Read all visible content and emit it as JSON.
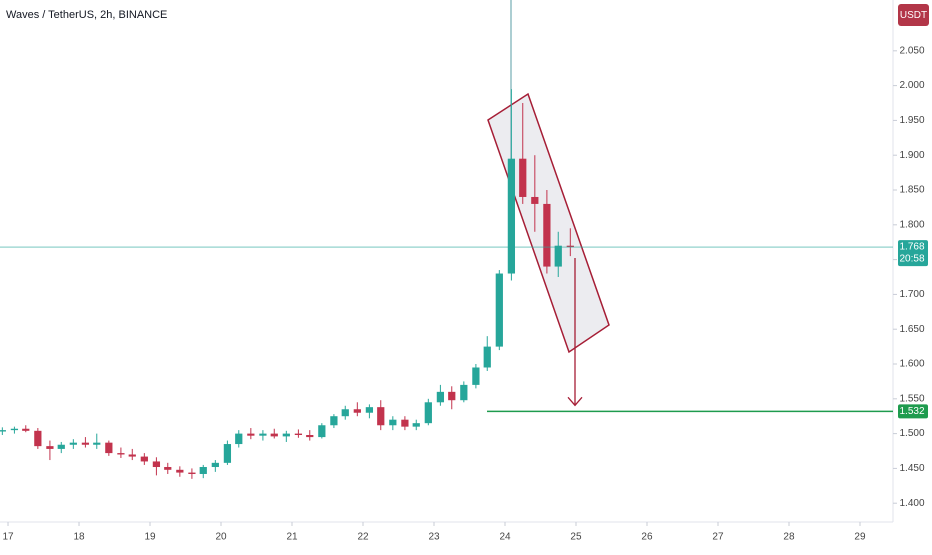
{
  "chart_data": {
    "type": "candlestick",
    "title": "Waves / TetherUS, 2h, BINANCE",
    "currency": "USDT",
    "up_color": "#26a69a",
    "down_color": "#c2334d",
    "x": [
      16.92,
      17.09,
      17.25,
      17.42,
      17.59,
      17.75,
      17.92,
      18.09,
      18.25,
      18.42,
      18.59,
      18.75,
      18.92,
      19.09,
      19.25,
      19.42,
      19.59,
      19.75,
      19.92,
      20.09,
      20.25,
      20.42,
      20.59,
      20.75,
      20.92,
      21.09,
      21.25,
      21.42,
      21.59,
      21.75,
      21.92,
      22.09,
      22.25,
      22.42,
      22.59,
      22.75,
      22.92,
      23.09,
      23.25,
      23.42,
      23.59,
      23.75,
      23.92,
      24.09,
      24.25,
      24.42,
      24.59,
      24.75,
      24.92
    ],
    "open": [
      1.503,
      1.505,
      1.507,
      1.504,
      1.482,
      1.478,
      1.484,
      1.487,
      1.484,
      1.487,
      1.472,
      1.47,
      1.467,
      1.46,
      1.452,
      1.448,
      1.444,
      1.442,
      1.452,
      1.458,
      1.485,
      1.5,
      1.497,
      1.5,
      1.496,
      1.5,
      1.498,
      1.495,
      1.512,
      1.525,
      1.535,
      1.53,
      1.538,
      1.512,
      1.52,
      1.51,
      1.515,
      1.545,
      1.56,
      1.548,
      1.57,
      1.595,
      1.625,
      1.73,
      1.895,
      1.84,
      1.83,
      1.74,
      1.77
    ],
    "high": [
      1.509,
      1.51,
      1.512,
      1.508,
      1.49,
      1.488,
      1.492,
      1.495,
      1.5,
      1.49,
      1.48,
      1.478,
      1.472,
      1.466,
      1.458,
      1.453,
      1.45,
      1.455,
      1.462,
      1.49,
      1.505,
      1.508,
      1.505,
      1.507,
      1.504,
      1.506,
      1.505,
      1.515,
      1.528,
      1.54,
      1.545,
      1.542,
      1.548,
      1.525,
      1.525,
      1.52,
      1.55,
      1.57,
      1.568,
      1.575,
      1.6,
      1.64,
      1.735,
      1.995,
      1.975,
      1.9,
      1.85,
      1.79,
      1.795
    ],
    "low": [
      1.498,
      1.5,
      1.502,
      1.478,
      1.462,
      1.472,
      1.478,
      1.48,
      1.478,
      1.468,
      1.465,
      1.462,
      1.455,
      1.44,
      1.442,
      1.438,
      1.435,
      1.436,
      1.445,
      1.455,
      1.48,
      1.492,
      1.49,
      1.493,
      1.488,
      1.494,
      1.49,
      1.493,
      1.508,
      1.52,
      1.525,
      1.522,
      1.505,
      1.505,
      1.505,
      1.505,
      1.512,
      1.54,
      1.535,
      1.545,
      1.565,
      1.59,
      1.62,
      1.72,
      1.83,
      1.79,
      1.73,
      1.725,
      1.755
    ],
    "close": [
      1.505,
      1.507,
      1.504,
      1.482,
      1.478,
      1.484,
      1.487,
      1.484,
      1.487,
      1.472,
      1.47,
      1.467,
      1.46,
      1.452,
      1.448,
      1.444,
      1.442,
      1.452,
      1.458,
      1.485,
      1.5,
      1.497,
      1.5,
      1.496,
      1.5,
      1.498,
      1.495,
      1.512,
      1.525,
      1.535,
      1.53,
      1.538,
      1.512,
      1.52,
      1.51,
      1.515,
      1.545,
      1.56,
      1.548,
      1.57,
      1.595,
      1.625,
      1.73,
      1.895,
      1.84,
      1.83,
      1.74,
      1.77,
      1.768
    ],
    "xlim": [
      16.887,
      29.465
    ],
    "xticks": [
      17,
      18,
      19,
      20,
      21,
      22,
      23,
      24,
      25,
      26,
      27,
      28,
      29
    ],
    "ylim": [
      1.373,
      2.123
    ],
    "yticks": [
      {
        "value": 1.4,
        "label": "1.400"
      },
      {
        "value": 1.45,
        "label": "1.450"
      },
      {
        "value": 1.5,
        "label": "1.500"
      },
      {
        "value": 1.55,
        "label": "1.550"
      },
      {
        "value": 1.6,
        "label": "1.600"
      },
      {
        "value": 1.65,
        "label": "1.650"
      },
      {
        "value": 1.7,
        "label": "1.700"
      },
      {
        "value": 1.75,
        "label": "1.750"
      },
      {
        "value": 1.8,
        "label": "1.800"
      },
      {
        "value": 1.85,
        "label": "1.850"
      },
      {
        "value": 1.9,
        "label": "1.900"
      },
      {
        "value": 1.95,
        "label": "1.950"
      },
      {
        "value": 2.0,
        "label": "2.000"
      },
      {
        "value": 2.05,
        "label": "2.050"
      }
    ],
    "last_price": {
      "value": 1.768,
      "label": "1.768",
      "countdown": "20:58"
    },
    "target_line": {
      "value": 1.532,
      "label": "1.532",
      "color": "#1e9b4e"
    }
  }
}
